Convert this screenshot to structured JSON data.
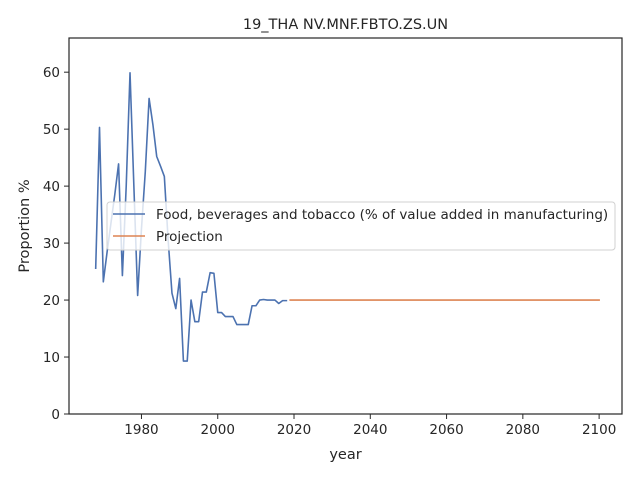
{
  "chart_data": {
    "type": "line",
    "title": "19_THA NV.MNF.FBTO.ZS.UN",
    "xlabel": "year",
    "ylabel": "Proportion %",
    "xlim": [
      1961,
      2106
    ],
    "ylim": [
      0,
      66
    ],
    "xticks": [
      1980,
      2000,
      2020,
      2040,
      2060,
      2080,
      2100
    ],
    "yticks": [
      0,
      10,
      20,
      30,
      40,
      50,
      60
    ],
    "grid": false,
    "legend_position": "center-right",
    "series": [
      {
        "name": "Food, beverages and tobacco (% of value added in manufacturing)",
        "color": "#4c72b0",
        "x": [
          1968,
          1969,
          1970,
          1971,
          1972,
          1973,
          1974,
          1975,
          1976,
          1977,
          1978,
          1979,
          1980,
          1981,
          1982,
          1983,
          1984,
          1985,
          1986,
          1987,
          1988,
          1989,
          1990,
          1991,
          1992,
          1993,
          1994,
          1995,
          1996,
          1997,
          1998,
          1999,
          2000,
          2001,
          2002,
          2003,
          2004,
          2005,
          2006,
          2007,
          2008,
          2009,
          2010,
          2011,
          2012,
          2013,
          2014,
          2015,
          2016,
          2017,
          2018
        ],
        "y": [
          25.6,
          50.3,
          23.2,
          28.5,
          33.5,
          38.5,
          43.9,
          24.3,
          40.0,
          59.9,
          40.2,
          20.8,
          32.5,
          42.5,
          55.4,
          50.8,
          45.2,
          43.5,
          41.7,
          30.5,
          21.2,
          18.5,
          23.8,
          9.3,
          9.3,
          20.0,
          16.2,
          16.2,
          21.4,
          21.4,
          24.8,
          24.7,
          17.8,
          17.8,
          17.1,
          17.1,
          17.1,
          15.7,
          15.7,
          15.7,
          15.7,
          19.0,
          19.0,
          20.0,
          20.1,
          20.0,
          20.0,
          20.0,
          19.4,
          19.9,
          19.9
        ]
      },
      {
        "name": "Projection",
        "color": "#dd8452",
        "x": [
          2019,
          2100
        ],
        "y": [
          20.0,
          20.0
        ]
      }
    ]
  }
}
